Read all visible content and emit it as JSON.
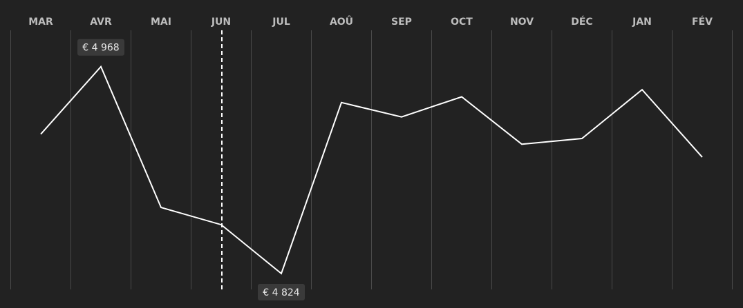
{
  "chart_data": {
    "type": "line",
    "categories": [
      "MAR",
      "AVR",
      "MAI",
      "JUN",
      "JUL",
      "AOÛ",
      "SEP",
      "OCT",
      "NOV",
      "DÉC",
      "JAN",
      "FÉV"
    ],
    "values": [
      4921,
      4968,
      4870,
      4858,
      4824,
      4943,
      4933,
      4947,
      4914,
      4918,
      4952,
      4905
    ],
    "title": "",
    "xlabel": "",
    "ylabel": "",
    "ylim": [
      4800,
      5000
    ],
    "grid": true,
    "marker_category": "JUN",
    "annotations": [
      {
        "category": "AVR",
        "label": "€ 4 968",
        "position": "above"
      },
      {
        "category": "JUL",
        "label": "€ 4 824",
        "position": "below"
      }
    ]
  },
  "colors": {
    "background": "#222222",
    "line": "#ffffff",
    "grid": "#4a4a4a",
    "label": "#bdbdbd",
    "tooltip_bg": "#3a3a3a",
    "tooltip_text": "#e8e8e8"
  }
}
